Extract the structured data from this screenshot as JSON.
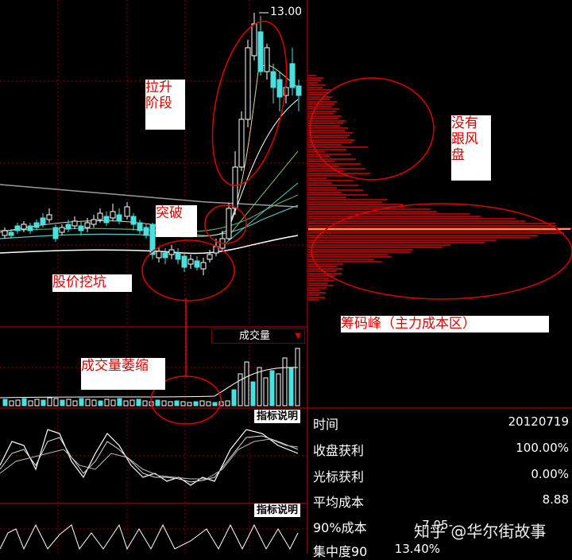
{
  "price": {
    "high_label": "13.00"
  },
  "annotations": {
    "lift_phase": "拉升阶段",
    "no_follow": "没有跟风盘",
    "breakout": "突破",
    "dig_pit": "股价挖坑",
    "chip_peak": "筹码峰（主力成本区）",
    "volume_shrink": "成交量萎缩"
  },
  "volume": {
    "selector_label": "成交量",
    "selector_arrow": "▼"
  },
  "indicator_buttons": [
    "指标说明",
    "指标说明"
  ],
  "stats": [
    {
      "label": "时间",
      "value": "20120719"
    },
    {
      "label": "收盘获利",
      "value": "100.00%"
    },
    {
      "label": "光标获利",
      "value": "0.00%"
    },
    {
      "label": "平均成本",
      "value": "8.88"
    },
    {
      "label": "90%成本",
      "value": "7.05-"
    },
    {
      "label": "集中度90",
      "value": "13.40%"
    }
  ],
  "watermark": "知乎 @华尔街故事",
  "colors": {
    "up": "#ffffff",
    "down": "#4be0e0",
    "annotation_red": "#e00000",
    "panel_border": "#8b0000"
  }
}
